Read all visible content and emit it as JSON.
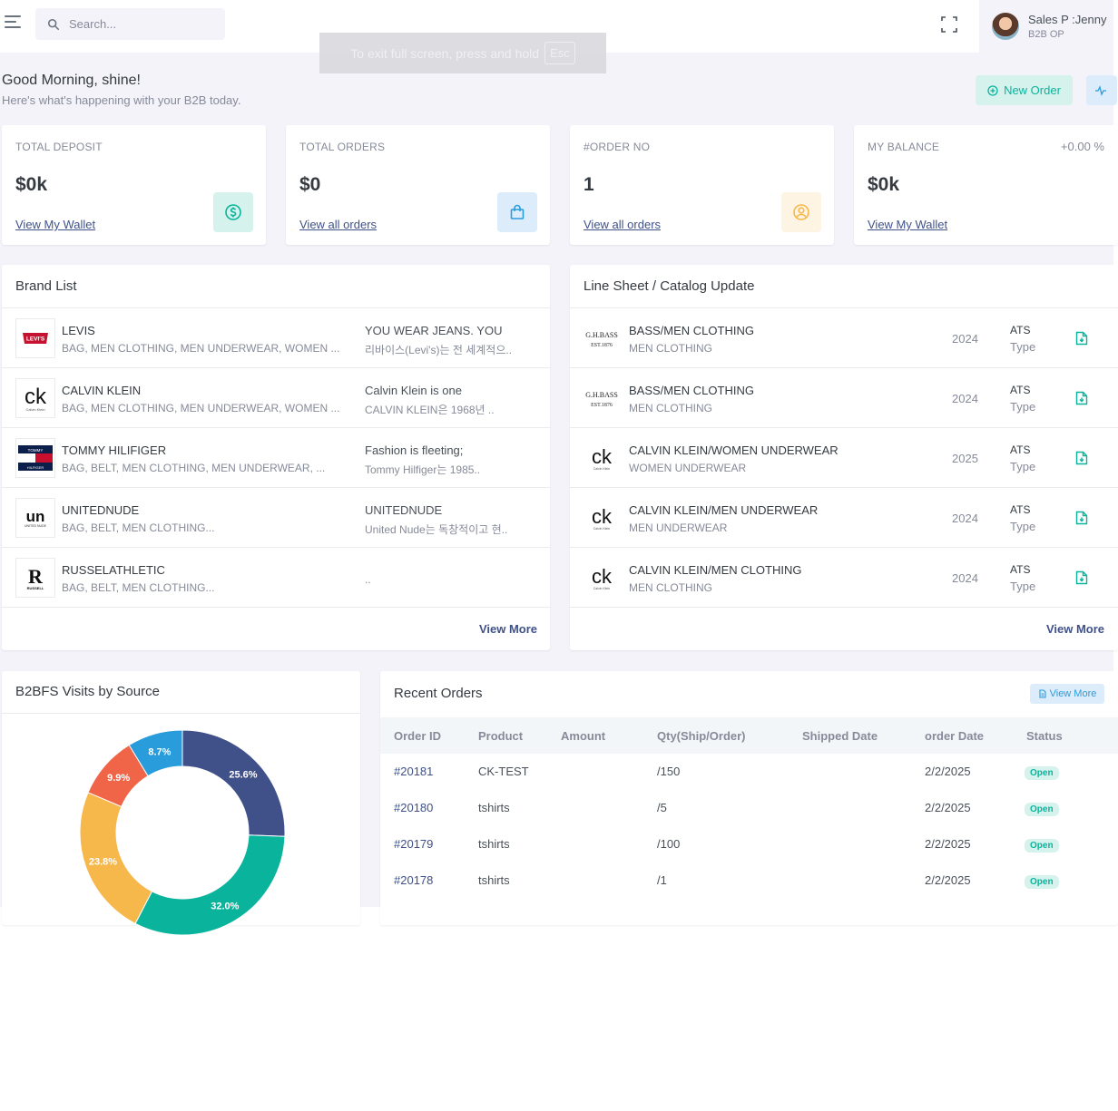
{
  "header": {
    "search_placeholder": "Search...",
    "user_name": "Sales P :Jenny",
    "user_role": "B2B OP",
    "fullscreen_toast": "To exit full screen, press and hold",
    "fullscreen_toast_key": "Esc"
  },
  "greeting": {
    "title": "Good Morning, shine!",
    "subtitle": "Here's what's happening with your B2B today.",
    "new_order_label": "New Order"
  },
  "stats": [
    {
      "label": "TOTAL DEPOSIT",
      "value": "$0k",
      "link": "View My Wallet",
      "icon": "dollar-circle-icon",
      "color": "#0ab39c",
      "bg": "#d6f2ec"
    },
    {
      "label": "TOTAL ORDERS",
      "value": "$0",
      "link": "View all orders",
      "icon": "shopping-bag-icon",
      "color": "#299cdb",
      "bg": "#dcecfb"
    },
    {
      "label": "#ORDER NO",
      "value": "1",
      "link": "View all orders",
      "icon": "user-circle-icon",
      "color": "#f7b84b",
      "bg": "#fef4e4"
    },
    {
      "label": "MY BALANCE",
      "value": "$0k",
      "link": "View My Wallet",
      "change": "+0.00 %"
    }
  ],
  "brand_list": {
    "title": "Brand List",
    "view_more": "View More",
    "items": [
      {
        "name": "LEVIS",
        "categories": "BAG, MEN CLOTHING, MEN UNDERWEAR, WOMEN ...",
        "desc": "YOU WEAR JEANS. YOU",
        "desc2": "리바이스(Levi's)는 전 세계적으..",
        "logo": "levis-logo"
      },
      {
        "name": "CALVIN KLEIN",
        "categories": "BAG, MEN CLOTHING, MEN UNDERWEAR, WOMEN ...",
        "desc": "Calvin Klein is one",
        "desc2": "CALVIN KLEIN은 1968년 ..",
        "logo": "calvin-klein-logo"
      },
      {
        "name": "TOMMY HILIFIGER",
        "categories": "BAG, BELT, MEN CLOTHING, MEN UNDERWEAR, ...",
        "desc": "Fashion is fleeting;",
        "desc2": "Tommy Hilfiger는 1985..",
        "logo": "tommy-hilfiger-logo"
      },
      {
        "name": "UNITEDNUDE",
        "categories": "BAG, BELT, MEN CLOTHING...",
        "desc": "UNITEDNUDE",
        "desc2": "United Nude는 독창적이고 현..",
        "logo": "united-nude-logo"
      },
      {
        "name": "RUSSELATHLETIC",
        "categories": "BAG, BELT, MEN CLOTHING...",
        "desc": "",
        "desc2": "..",
        "logo": "russell-athletic-logo"
      }
    ]
  },
  "line_sheet": {
    "title": "Line Sheet / Catalog Update",
    "view_more": "View More",
    "items": [
      {
        "name": "BASS/MEN CLOTHING",
        "category": "MEN CLOTHING",
        "year": "2024",
        "type1": "ATS",
        "type2": "Type",
        "logo": "gh-bass-logo"
      },
      {
        "name": "BASS/MEN CLOTHING",
        "category": "MEN CLOTHING",
        "year": "2024",
        "type1": "ATS",
        "type2": "Type",
        "logo": "gh-bass-logo"
      },
      {
        "name": "CALVIN KLEIN/WOMEN UNDERWEAR",
        "category": "WOMEN UNDERWEAR",
        "year": "2025",
        "type1": "ATS",
        "type2": "Type",
        "logo": "calvin-klein-logo"
      },
      {
        "name": "CALVIN KLEIN/MEN UNDERWEAR",
        "category": "MEN UNDERWEAR",
        "year": "2024",
        "type1": "ATS",
        "type2": "Type",
        "logo": "calvin-klein-logo"
      },
      {
        "name": "CALVIN KLEIN/MEN CLOTHING",
        "category": "MEN CLOTHING",
        "year": "2024",
        "type1": "ATS",
        "type2": "Type",
        "logo": "calvin-klein-logo"
      }
    ]
  },
  "visits": {
    "title": "B2BFS Visits by Source",
    "chart_data": {
      "type": "pie",
      "values": [
        25.6,
        32.0,
        23.8,
        9.9,
        8.7
      ],
      "labels": [
        "25.6%",
        "32.0%",
        "23.8%",
        "9.9%",
        "8.7%"
      ],
      "colors": [
        "#405189",
        "#0ab39c",
        "#f7b84b",
        "#f06548",
        "#299cdb"
      ]
    }
  },
  "recent_orders": {
    "title": "Recent Orders",
    "view_more": "View More",
    "columns": [
      "Order ID",
      "Product",
      "Amount",
      "Qty(Ship/Order)",
      "Shipped Date",
      "order Date",
      "Status"
    ],
    "rows": [
      {
        "id": "#20181",
        "product": "CK-TEST",
        "amount": "",
        "qty": "/150",
        "shipped": "",
        "date": "2/2/2025",
        "status": "Open"
      },
      {
        "id": "#20180",
        "product": "tshirts",
        "amount": "",
        "qty": "/5",
        "shipped": "",
        "date": "2/2/2025",
        "status": "Open"
      },
      {
        "id": "#20179",
        "product": "tshirts",
        "amount": "",
        "qty": "/100",
        "shipped": "",
        "date": "2/2/2025",
        "status": "Open"
      },
      {
        "id": "#20178",
        "product": "tshirts",
        "amount": "",
        "qty": "/1",
        "shipped": "",
        "date": "2/2/2025",
        "status": "Open"
      }
    ]
  }
}
